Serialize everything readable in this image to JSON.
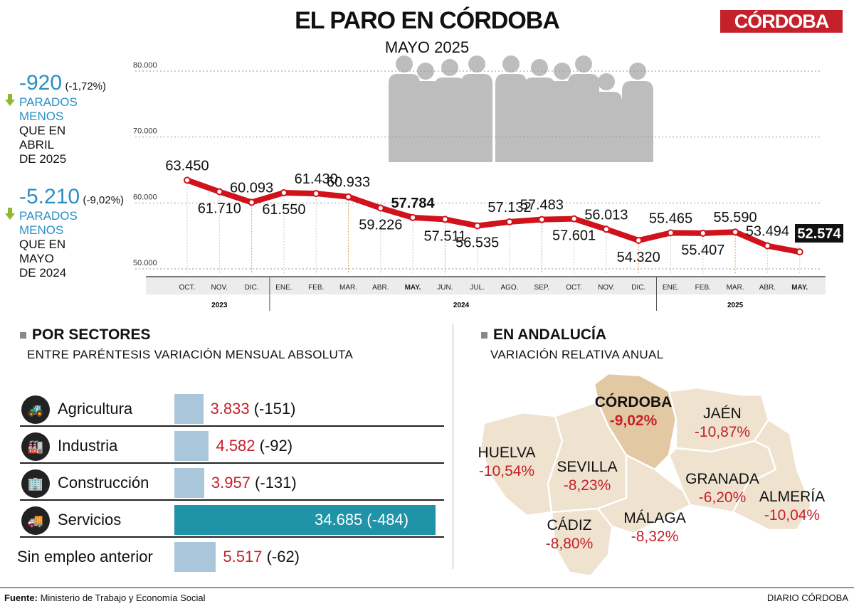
{
  "header": {
    "title": "EL PARO EN CÓRDOBA",
    "subtitle": "MAYO 2025",
    "logo": "CÓRDOBA"
  },
  "kpis": [
    {
      "value": "-920",
      "pct": "(-1,72%)",
      "line1": "PARADOS",
      "line2": "MENOS",
      "line3": "QUE EN",
      "line4": "ABRIL",
      "line5": "DE 2025",
      "icon": "arrow-down-icon"
    },
    {
      "value": "-5.210",
      "pct": "(-9,02%)",
      "line1": "PARADOS",
      "line2": "MENOS",
      "line3": "QUE EN",
      "line4": "MAYO",
      "line5": "DE 2024",
      "icon": "arrow-down-icon"
    }
  ],
  "chart_data": {
    "type": "line",
    "ylim": [
      50000,
      80000
    ],
    "yticks": [
      "50.000",
      "60.000",
      "70.000",
      "80.000"
    ],
    "yticks_values": [
      50000,
      60000,
      70000,
      80000
    ],
    "grid": true,
    "color": "#d0121b",
    "categories": [
      "OCT.",
      "NOV.",
      "DIC.",
      "ENE.",
      "FEB.",
      "MAR.",
      "ABR.",
      "MAY.",
      "JUN.",
      "JUL.",
      "AGO.",
      "SEP.",
      "OCT.",
      "NOV.",
      "DIC.",
      "ENE.",
      "FEB.",
      "MAR.",
      "ABR.",
      "MAY."
    ],
    "years": [
      {
        "label": "2023",
        "span": 3
      },
      {
        "label": "2024",
        "span": 12
      },
      {
        "label": "2025",
        "span": 5
      }
    ],
    "values": [
      63450,
      61710,
      60093,
      61550,
      61430,
      60933,
      59226,
      57784,
      57511,
      56535,
      57132,
      57483,
      57601,
      56013,
      54320,
      55465,
      55407,
      55590,
      53494,
      52574
    ],
    "labels": [
      "63.450",
      "61.710",
      "60.093",
      "61.550",
      "61.430",
      "60.933",
      "59.226",
      "57.784",
      "57.511",
      "56.535",
      "57.132",
      "57.483",
      "57.601",
      "56.013",
      "54.320",
      "55.465",
      "55.407",
      "55.590",
      "53.494",
      "52.574"
    ],
    "highlighted": [
      7,
      19
    ]
  },
  "sectors": {
    "title": "POR SECTORES",
    "subtitle": "ENTRE PARÉNTESIS VARIACIÓN MENSUAL ABSOLUTA",
    "items": [
      {
        "name": "Agricultura",
        "value": 3833,
        "value_label": "3.833",
        "change": "(-151)",
        "icon": "tractor-icon"
      },
      {
        "name": "Industria",
        "value": 4582,
        "value_label": "4.582",
        "change": "(-92)",
        "icon": "factory-icon"
      },
      {
        "name": "Construcción",
        "value": 3957,
        "value_label": "3.957",
        "change": "(-131)",
        "icon": "buildings-icon"
      },
      {
        "name": "Servicios",
        "value": 34685,
        "value_label": "34.685",
        "change": "(-484)",
        "icon": "van-icon"
      },
      {
        "name": "Sin empleo anterior",
        "value": 5517,
        "value_label": "5.517",
        "change": "(-62)"
      }
    ],
    "bar_color": "#a9c6da",
    "highlight_color": "#1f93a8"
  },
  "andalucia": {
    "title": "EN ANDALUCÍA",
    "subtitle": "VARIACIÓN RELATIVA ANUAL",
    "provinces": [
      {
        "name": "CÓRDOBA",
        "value": "-9,02%"
      },
      {
        "name": "JAÉN",
        "value": "-10,87%"
      },
      {
        "name": "HUELVA",
        "value": "-10,54%"
      },
      {
        "name": "SEVILLA",
        "value": "-8,23%"
      },
      {
        "name": "GRANADA",
        "value": "-6,20%"
      },
      {
        "name": "ALMERÍA",
        "value": "-10,04%"
      },
      {
        "name": "CÁDIZ",
        "value": "-8,80%"
      },
      {
        "name": "MÁLAGA",
        "value": "-8,32%"
      }
    ]
  },
  "footer": {
    "source_label": "Fuente:",
    "source": "Ministerio de Trabajo y Economía Social",
    "credit": "DIARIO CÓRDOBA"
  }
}
